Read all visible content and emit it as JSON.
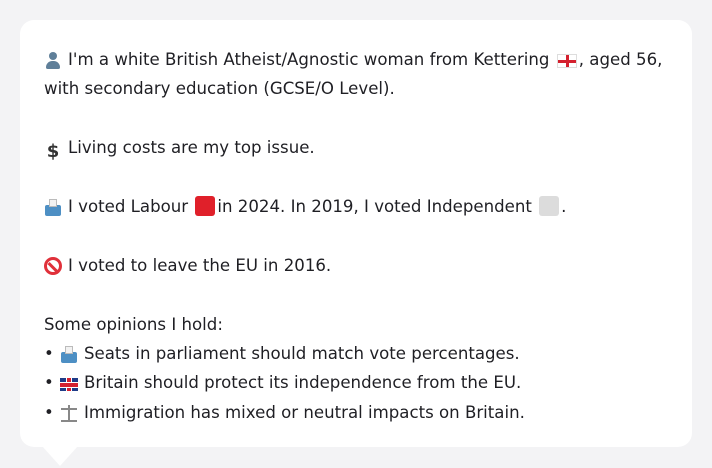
{
  "card": {
    "intro_line1": "I'm a white British Atheist/Agnostic woman from Kettering",
    "intro_line1_tail": ", aged 56,",
    "intro_line2": "with secondary education (GCSE/O Level).",
    "issue": "Living costs are my top issue.",
    "vote_part1": "I voted Labour",
    "vote_part2": "in 2024. In 2019, I voted Independent",
    "vote_part3": ".",
    "brexit": "I voted to leave the EU in 2016.",
    "opinions_heading": "Some opinions I hold:",
    "bullet_char": "•",
    "opinions": [
      "Seats in parliament should match vote percentages.",
      "Britain should protect its independence from the EU.",
      "Immigration has mixed or neutral impacts on Britain."
    ],
    "icons": {
      "person": "person-icon",
      "england_flag": "england-flag-icon",
      "dollar": "dollar-icon",
      "ballot": "ballot-box-icon",
      "labour_square": "labour-red-square-icon",
      "independent_square": "independent-grey-square-icon",
      "prohibited": "prohibited-icon",
      "uk_flag": "uk-flag-icon",
      "scales": "scales-icon"
    },
    "colors": {
      "labour": "#e0202a",
      "independent": "#dcdcdc"
    }
  }
}
